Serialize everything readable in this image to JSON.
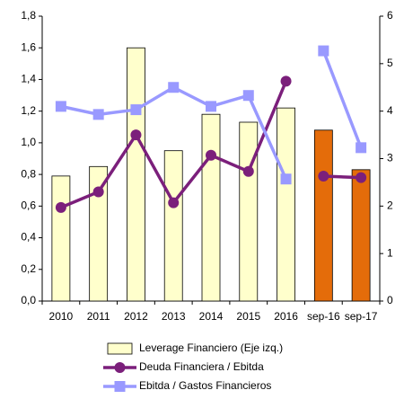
{
  "chart_data": {
    "type": "bar-line",
    "categories": [
      "2010",
      "2011",
      "2012",
      "2013",
      "2014",
      "2015",
      "2016",
      "sep-16",
      "sep-17"
    ],
    "series": [
      {
        "name": "Leverage Financiero (Eje izq.)",
        "type": "bar",
        "color": "#ffffcc",
        "colors": [
          "#ffffcc",
          "#ffffcc",
          "#ffffcc",
          "#ffffcc",
          "#ffffcc",
          "#ffffcc",
          "#ffffcc",
          "#e46c0a",
          "#e46c0a"
        ],
        "values": [
          0.79,
          0.85,
          1.6,
          0.95,
          1.18,
          1.13,
          1.22,
          1.08,
          0.83
        ]
      },
      {
        "name": "Deuda Financiera / Ebitda",
        "type": "line",
        "axis": "y2",
        "marker": "circle",
        "color": "#7b1f7b",
        "values": [
          1.97,
          2.3,
          3.5,
          2.07,
          3.07,
          2.73,
          4.63,
          2.63,
          2.6
        ]
      },
      {
        "name": "Ebitda / Gastos Financieros",
        "type": "line",
        "axis": "y2",
        "marker": "square",
        "color": "#9999ff",
        "values": [
          4.1,
          3.93,
          4.03,
          4.5,
          4.1,
          4.33,
          2.57,
          5.27,
          3.23
        ]
      }
    ],
    "line_break_before": 7,
    "ylim": [
      0,
      1.8
    ],
    "yticks": [
      {
        "value": 0,
        "label": "0,0"
      },
      {
        "value": 0.2,
        "label": "0,2"
      },
      {
        "value": 0.4,
        "label": "0,4"
      },
      {
        "value": 0.6,
        "label": "0,6"
      },
      {
        "value": 0.8,
        "label": "0,8"
      },
      {
        "value": 1.0,
        "label": "1,0"
      },
      {
        "value": 1.2,
        "label": "1,2"
      },
      {
        "value": 1.4,
        "label": "1,4"
      },
      {
        "value": 1.6,
        "label": "1,6"
      },
      {
        "value": 1.8,
        "label": "1,8"
      }
    ],
    "y2lim": [
      0,
      6
    ],
    "y2ticks": [
      0,
      1,
      2,
      3,
      4,
      5,
      6
    ],
    "legend": "bottom"
  }
}
